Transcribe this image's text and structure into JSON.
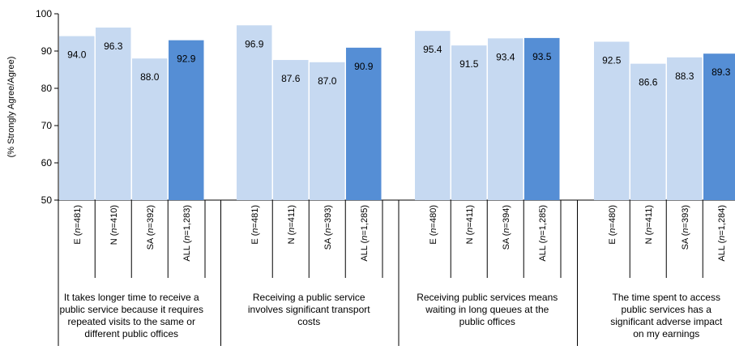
{
  "chart_data": {
    "type": "bar",
    "ylabel": "(% Strongly Agree/Agree)",
    "ylim": [
      50,
      100
    ],
    "yticks": [
      50,
      60,
      70,
      80,
      90,
      100
    ],
    "grid": false,
    "colors": {
      "region": "#c6d9f1",
      "all": "#558ed5",
      "axis": "#000000"
    },
    "groups": [
      {
        "label": "It takes longer time to receive a public service because it requires repeated visits to the same or different public offices",
        "label_lines": [
          "It takes longer time to receive a",
          "public service because it requires",
          "repeated visits to the same or",
          "different public offices"
        ],
        "bars": [
          {
            "code": "E",
            "n": "481",
            "value": 94.0,
            "value_label": "94.0"
          },
          {
            "code": "N",
            "n": "410",
            "value": 96.3,
            "value_label": "96.3"
          },
          {
            "code": "SA",
            "n": "392",
            "value": 88.0,
            "value_label": "88.0"
          },
          {
            "code": "ALL",
            "n": "1,283",
            "value": 92.9,
            "value_label": "92.9"
          }
        ]
      },
      {
        "label": "Receiving a public service involves significant transport costs",
        "label_lines": [
          "Receiving a public service",
          "involves significant transport",
          "costs"
        ],
        "bars": [
          {
            "code": "E",
            "n": "481",
            "value": 96.9,
            "value_label": "96.9"
          },
          {
            "code": "N",
            "n": "411",
            "value": 87.6,
            "value_label": "87.6"
          },
          {
            "code": "SA",
            "n": "393",
            "value": 87.0,
            "value_label": "87.0"
          },
          {
            "code": "ALL",
            "n": "1,285",
            "value": 90.9,
            "value_label": "90.9"
          }
        ]
      },
      {
        "label": "Receiving public services means waiting in long queues at the public offices",
        "label_lines": [
          "Receiving public services means",
          "waiting in long queues at the",
          "public offices"
        ],
        "bars": [
          {
            "code": "E",
            "n": "480",
            "value": 95.4,
            "value_label": "95.4"
          },
          {
            "code": "N",
            "n": "411",
            "value": 91.5,
            "value_label": "91.5"
          },
          {
            "code": "SA",
            "n": "394",
            "value": 93.4,
            "value_label": "93.4"
          },
          {
            "code": "ALL",
            "n": "1,285",
            "value": 93.5,
            "value_label": "93.5"
          }
        ]
      },
      {
        "label": "The time spent to access public services has a significant adverse impact on my earnings",
        "label_lines": [
          "The time spent to access",
          "public services has a",
          "significant adverse impact",
          "on my earnings"
        ],
        "bars": [
          {
            "code": "E",
            "n": "480",
            "value": 92.5,
            "value_label": "92.5"
          },
          {
            "code": "N",
            "n": "411",
            "value": 86.6,
            "value_label": "86.6"
          },
          {
            "code": "SA",
            "n": "393",
            "value": 88.3,
            "value_label": "88.3"
          },
          {
            "code": "ALL",
            "n": "1,284",
            "value": 89.3,
            "value_label": "89.3"
          }
        ]
      }
    ]
  }
}
